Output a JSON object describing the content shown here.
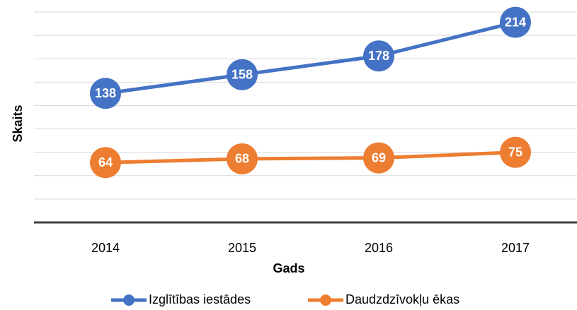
{
  "chart_data": {
    "type": "line",
    "x_label": "Gads",
    "y_label": "Skaits",
    "categories": [
      "2014",
      "2015",
      "2016",
      "2017"
    ],
    "series": [
      {
        "name": "Izglītības iestādes",
        "color": "#4472c4",
        "values": [
          138,
          158,
          178,
          214
        ]
      },
      {
        "name": "Daudzdzīvokļu ēkas",
        "color": "#ed7d31",
        "values": [
          64,
          68,
          69,
          75
        ]
      }
    ],
    "ylim": [
      0,
      225
    ],
    "yticks": [
      0,
      25,
      50,
      75,
      100,
      125,
      150,
      175,
      200,
      225
    ],
    "grid": true,
    "legend": "bottom"
  }
}
